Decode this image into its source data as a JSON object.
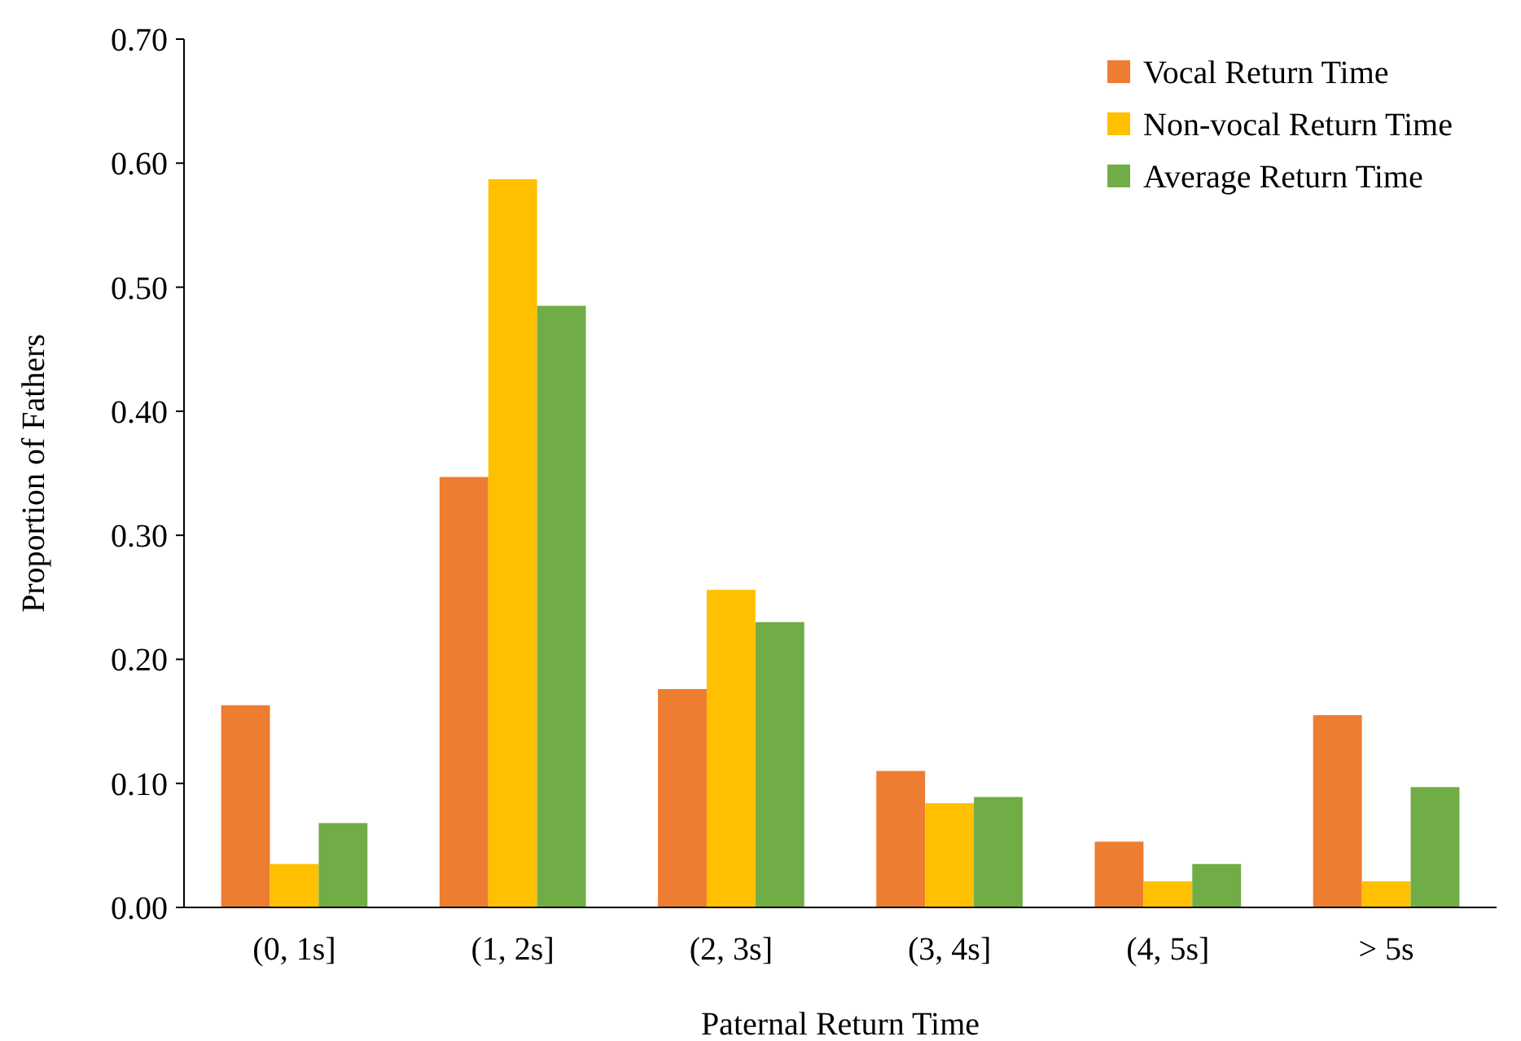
{
  "chart_data": {
    "type": "bar",
    "xlabel": "Paternal Return Time",
    "ylabel": "Proportion of Fathers",
    "categories": [
      "(0, 1s]",
      "(1, 2s]",
      "(2, 3s]",
      "(3, 4s]",
      "(4, 5s]",
      "> 5s"
    ],
    "series": [
      {
        "name": "Vocal Return Time",
        "color": "#ed7d31",
        "values": [
          0.163,
          0.347,
          0.176,
          0.11,
          0.053,
          0.155
        ]
      },
      {
        "name": "Non-vocal Return Time",
        "color": "#ffc000",
        "values": [
          0.035,
          0.587,
          0.256,
          0.084,
          0.021,
          0.021
        ]
      },
      {
        "name": "Average Return Time",
        "color": "#70ad47",
        "values": [
          0.068,
          0.485,
          0.23,
          0.089,
          0.035,
          0.097
        ]
      }
    ],
    "ylim": [
      0,
      0.7
    ],
    "yticks": [
      {
        "value": 0,
        "label": "0.00"
      },
      {
        "value": 0.1,
        "label": "0.10"
      },
      {
        "value": 0.2,
        "label": "0.20"
      },
      {
        "value": 0.3,
        "label": "0.30"
      },
      {
        "value": 0.4,
        "label": "0.40"
      },
      {
        "value": 0.5,
        "label": "0.50"
      },
      {
        "value": 0.6,
        "label": "0.60"
      },
      {
        "value": 0.7,
        "label": "0.70"
      }
    ],
    "grid": false,
    "legend": "top right"
  }
}
